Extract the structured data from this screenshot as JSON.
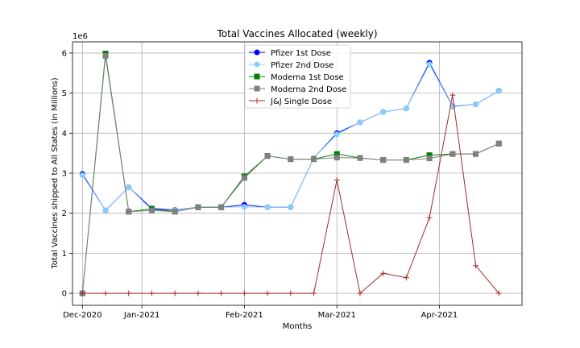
{
  "chart_data": {
    "type": "line",
    "title": "Total Vaccines Allocated (weekly)",
    "xlabel": "Months",
    "ylabel": "Total Vaccines shipped to All States (in Millions)",
    "y_offset_text": "1e6",
    "x_tick_labels": [
      "Dec-2020",
      "Jan-2021",
      "Feb-2021",
      "Mar-2021",
      "Apr-2021"
    ],
    "x_tick_dates": [
      "2020-12-14",
      "2021-01-01",
      "2021-02-01",
      "2021-03-01",
      "2021-04-01"
    ],
    "x_range": [
      "2020-12-11",
      "2021-04-26"
    ],
    "y_tick_labels": [
      "0",
      "1",
      "2",
      "3",
      "4",
      "5",
      "6"
    ],
    "y_ticks": [
      0,
      1000000,
      2000000,
      3000000,
      4000000,
      5000000,
      6000000
    ],
    "ylim": [
      -300000,
      6280000
    ],
    "grid": true,
    "legend_position": "top-center",
    "x": [
      "2020-12-14",
      "2020-12-21",
      "2020-12-28",
      "2021-01-04",
      "2021-01-11",
      "2021-01-18",
      "2021-01-25",
      "2021-02-01",
      "2021-02-08",
      "2021-02-15",
      "2021-02-22",
      "2021-03-01",
      "2021-03-08",
      "2021-03-15",
      "2021-03-22",
      "2021-03-29",
      "2021-04-05",
      "2021-04-12",
      "2021-04-19"
    ],
    "series": [
      {
        "name": "Pfizer 1st Dose",
        "color": "#0000ff",
        "marker": "circle",
        "values": [
          2980000,
          2070000,
          2650000,
          2120000,
          2080000,
          2150000,
          2150000,
          2210000,
          2150000,
          2150000,
          3380000,
          4000000,
          4270000,
          4530000,
          4620000,
          5760000,
          4670000,
          4720000,
          5060000
        ]
      },
      {
        "name": "Pfizer 2nd Dose",
        "color": "#87cefa",
        "marker": "circle",
        "values": [
          2950000,
          2070000,
          2650000,
          2080000,
          2070000,
          2150000,
          2150000,
          2160000,
          2150000,
          2150000,
          3380000,
          3970000,
          4270000,
          4530000,
          4620000,
          5720000,
          4660000,
          4720000,
          5060000
        ]
      },
      {
        "name": "Moderna 1st Dose",
        "color": "#008000",
        "marker": "square",
        "values": [
          0,
          5990000,
          2040000,
          2110000,
          2040000,
          2150000,
          2150000,
          2920000,
          3430000,
          3350000,
          3350000,
          3480000,
          3380000,
          3330000,
          3330000,
          3450000,
          3480000,
          3480000,
          3740000
        ]
      },
      {
        "name": "Moderna 2nd Dose",
        "color": "#808080",
        "marker": "square",
        "values": [
          0,
          5930000,
          2040000,
          2070000,
          2040000,
          2150000,
          2150000,
          2880000,
          3430000,
          3350000,
          3350000,
          3390000,
          3380000,
          3330000,
          3330000,
          3370000,
          3480000,
          3480000,
          3740000
        ]
      },
      {
        "name": "J&J Single Dose",
        "color": "#a52a2a",
        "marker": "plus",
        "values": [
          0,
          0,
          0,
          0,
          0,
          0,
          0,
          0,
          0,
          0,
          0,
          2830000,
          0,
          500000,
          390000,
          1890000,
          4950000,
          690000,
          0
        ]
      }
    ]
  }
}
